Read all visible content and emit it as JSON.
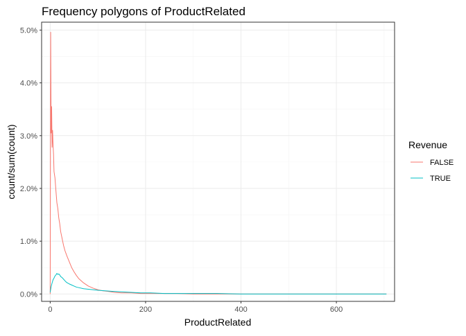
{
  "chart_data": {
    "type": "line",
    "title": "Frequency polygons of ProductRelated",
    "xlabel": "ProductRelated",
    "ylabel": "count/sum(count)",
    "xlim": [
      -18,
      722
    ],
    "ylim": [
      -0.0014,
      0.0515
    ],
    "x_ticks": [
      0,
      200,
      400,
      600
    ],
    "y_ticks": [
      0.0,
      0.01,
      0.02,
      0.03,
      0.04,
      0.05
    ],
    "y_tick_labels": [
      "0.0%",
      "1.0%",
      "2.0%",
      "3.0%",
      "4.0%",
      "5.0%"
    ],
    "grid": true,
    "legend": {
      "title": "Revenue",
      "position": "right"
    },
    "series": [
      {
        "name": "FALSE",
        "color": "#F8766D",
        "x": [
          0,
          1,
          2,
          3,
          4,
          5,
          6,
          7,
          8,
          10,
          12,
          14,
          16,
          18,
          20,
          22,
          25,
          28,
          31,
          35,
          40,
          45,
          50,
          55,
          60,
          70,
          80,
          90,
          100,
          110,
          120,
          135,
          150,
          170,
          190,
          210,
          230,
          260,
          300,
          350,
          400,
          450,
          500,
          550,
          600,
          650,
          705
        ],
        "y": [
          0.0,
          0.0496,
          0.0305,
          0.0355,
          0.0278,
          0.031,
          0.0282,
          0.0265,
          0.0232,
          0.022,
          0.0196,
          0.0173,
          0.0162,
          0.0144,
          0.0133,
          0.0118,
          0.0105,
          0.0092,
          0.0082,
          0.0072,
          0.0061,
          0.005,
          0.0042,
          0.0035,
          0.0029,
          0.0021,
          0.0015,
          0.0011,
          0.0008,
          0.0006,
          0.0005,
          0.0003,
          0.0002,
          0.0002,
          0.0001,
          0.0001,
          0.0001,
          0.0001,
          0.0,
          0.0,
          0.0,
          0.0,
          0.0,
          0.0,
          0.0,
          0.0,
          0.0
        ]
      },
      {
        "name": "TRUE",
        "color": "#00BFC4",
        "x": [
          0,
          2,
          4,
          6,
          8,
          10,
          12,
          14,
          16,
          18,
          20,
          22,
          25,
          28,
          30,
          33,
          36,
          40,
          45,
          50,
          55,
          60,
          70,
          80,
          90,
          100,
          115,
          130,
          150,
          170,
          190,
          210,
          240,
          270,
          300,
          350,
          400,
          450,
          500,
          550,
          600,
          650,
          705
        ],
        "y": [
          0.0003,
          0.0014,
          0.0021,
          0.0027,
          0.003,
          0.0034,
          0.0036,
          0.0039,
          0.0037,
          0.0038,
          0.0036,
          0.0033,
          0.0031,
          0.0028,
          0.0026,
          0.0023,
          0.0021,
          0.0019,
          0.0017,
          0.0015,
          0.0013,
          0.0012,
          0.001,
          0.0009,
          0.0008,
          0.0007,
          0.0006,
          0.0005,
          0.0004,
          0.0003,
          0.0002,
          0.0002,
          0.0001,
          0.0001,
          0.0001,
          0.0001,
          0.0,
          0.0,
          0.0,
          0.0,
          0.0,
          0.0,
          0.0
        ]
      }
    ]
  }
}
